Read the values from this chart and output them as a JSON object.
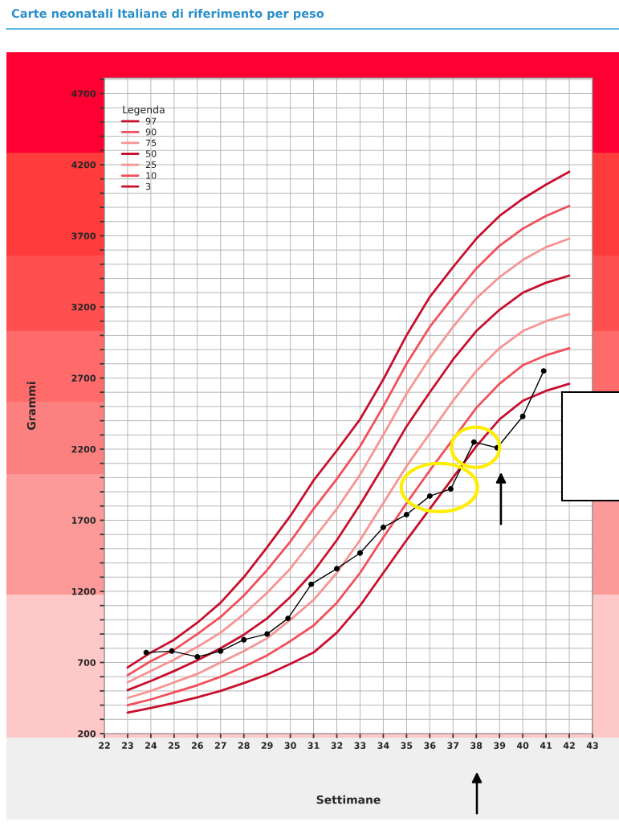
{
  "chart_data": {
    "type": "line",
    "title": "Carte neonatali Italiane di riferimento per peso",
    "xlabel": "Settimane",
    "ylabel": "Grammi",
    "legend_title": "Legenda",
    "x": [
      23,
      24,
      25,
      26,
      27,
      28,
      29,
      30,
      31,
      32,
      33,
      34,
      35,
      36,
      37,
      38,
      39,
      40,
      41,
      42
    ],
    "series": [
      {
        "name": "97",
        "color": "#c8102e",
        "values": [
          665,
          770,
          860,
          980,
          1120,
          1300,
          1510,
          1730,
          1980,
          2190,
          2410,
          2690,
          3000,
          3270,
          3480,
          3680,
          3840,
          3960,
          4060,
          4150
        ]
      },
      {
        "name": "90",
        "color": "#f2505a",
        "values": [
          610,
          710,
          790,
          900,
          1020,
          1170,
          1350,
          1550,
          1780,
          1990,
          2220,
          2500,
          2800,
          3060,
          3270,
          3470,
          3630,
          3750,
          3840,
          3910
        ]
      },
      {
        "name": "75",
        "color": "#f79494",
        "values": [
          560,
          640,
          720,
          810,
          910,
          1040,
          1190,
          1360,
          1570,
          1780,
          2020,
          2300,
          2590,
          2840,
          3060,
          3260,
          3410,
          3530,
          3620,
          3680
        ]
      },
      {
        "name": "50",
        "color": "#c8102e",
        "values": [
          506,
          570,
          640,
          715,
          800,
          895,
          1010,
          1160,
          1340,
          1560,
          1810,
          2080,
          2360,
          2600,
          2830,
          3030,
          3180,
          3300,
          3370,
          3420
        ]
      },
      {
        "name": "25",
        "color": "#f79494",
        "values": [
          450,
          500,
          560,
          620,
          700,
          780,
          870,
          1000,
          1140,
          1330,
          1560,
          1820,
          2080,
          2310,
          2540,
          2750,
          2910,
          3030,
          3100,
          3150
        ]
      },
      {
        "name": "10",
        "color": "#f2505a",
        "values": [
          400,
          440,
          490,
          540,
          600,
          670,
          750,
          850,
          960,
          1120,
          1330,
          1580,
          1820,
          2050,
          2270,
          2490,
          2660,
          2790,
          2860,
          2910
        ]
      },
      {
        "name": "3",
        "color": "#c8102e",
        "values": [
          348,
          380,
          415,
          455,
          500,
          555,
          615,
          690,
          770,
          910,
          1100,
          1330,
          1560,
          1780,
          2000,
          2220,
          2410,
          2540,
          2610,
          2660
        ]
      },
      {
        "color": "#000000",
        "marker": "circle",
        "x": [
          23.8,
          24.9,
          26,
          27,
          28,
          29,
          29.9,
          30.9,
          32,
          33,
          34,
          35,
          36,
          36.9,
          37.9,
          38.9,
          40,
          40.9
        ],
        "values": [
          770,
          780,
          740,
          780,
          860,
          900,
          1010,
          1250,
          1360,
          1470,
          1650,
          1740,
          1870,
          1920,
          2250,
          2210,
          2430,
          2750
        ]
      }
    ],
    "xlim": [
      22,
      43
    ],
    "xticks": [
      22,
      23,
      24,
      25,
      26,
      27,
      28,
      29,
      30,
      31,
      32,
      33,
      34,
      35,
      36,
      37,
      38,
      39,
      40,
      41,
      42,
      43
    ],
    "ylim": [
      200,
      4810
    ],
    "yticks": [
      200,
      {
        "value": 300,
        "label": null
      },
      {
        "value": 400,
        "label": null
      },
      {
        "value": 500,
        "label": null
      },
      {
        "value": 600,
        "label": null
      },
      700,
      {
        "value": 800,
        "label": null
      },
      {
        "value": 900,
        "label": null
      },
      {
        "value": 1000,
        "label": null
      },
      {
        "value": 1100,
        "label": null
      },
      1200,
      {
        "value": 1300,
        "label": null
      },
      {
        "value": 1400,
        "label": null
      },
      {
        "value": 1500,
        "label": null
      },
      {
        "value": 1600,
        "label": null
      },
      1700,
      {
        "value": 1800,
        "label": null
      },
      {
        "value": 1900,
        "label": null
      },
      {
        "value": 2000,
        "label": null
      },
      {
        "value": 2100,
        "label": null
      },
      2200,
      {
        "value": 2300,
        "label": null
      },
      {
        "value": 2400,
        "label": null
      },
      {
        "value": 2500,
        "label": null
      },
      {
        "value": 2600,
        "label": null
      },
      2700,
      {
        "value": 2800,
        "label": null
      },
      {
        "value": 2900,
        "label": null
      },
      {
        "value": 3000,
        "label": null
      },
      {
        "value": 3100,
        "label": null
      },
      3200,
      {
        "value": 3300,
        "label": null
      },
      {
        "value": 3400,
        "label": null
      },
      {
        "value": 3500,
        "label": null
      },
      {
        "value": 3600,
        "label": null
      },
      3700,
      {
        "value": 3800,
        "label": null
      },
      {
        "value": 3900,
        "label": null
      },
      {
        "value": 4000,
        "label": null
      },
      {
        "value": 4100,
        "label": null
      },
      4200,
      {
        "value": 4300,
        "label": null
      },
      {
        "value": 4400,
        "label": null
      },
      {
        "value": 4500,
        "label": null
      },
      {
        "value": 4600,
        "label": null
      },
      4700,
      {
        "value": 4800,
        "label": null
      }
    ],
    "grid": true,
    "legend": "top left",
    "line_style": "solid"
  }
}
